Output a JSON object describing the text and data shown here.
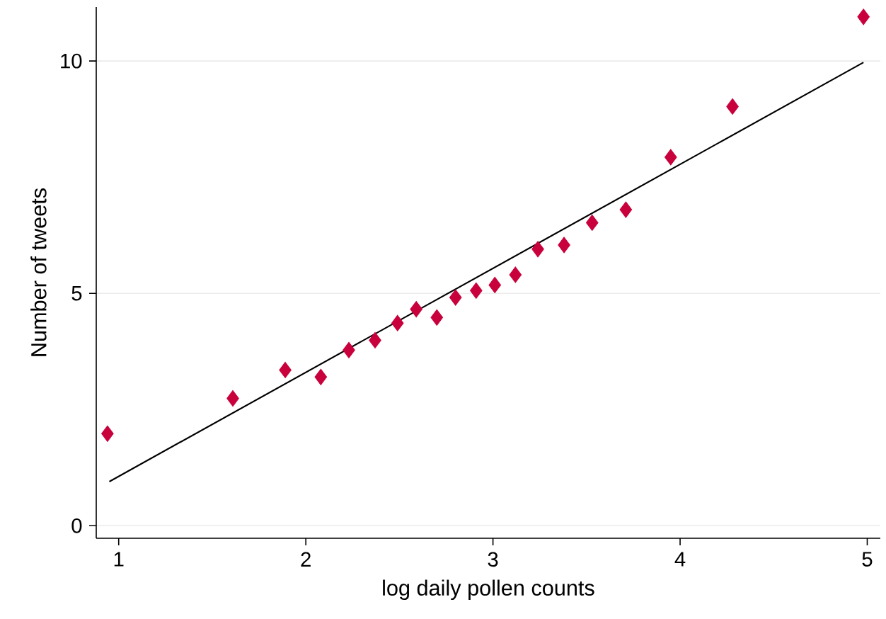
{
  "chart_data": {
    "type": "scatter",
    "xlabel": "log daily pollen counts",
    "ylabel": "Number of tweets",
    "xlim": [
      0.88,
      5.07
    ],
    "ylim": [
      -0.27,
      11.16
    ],
    "xticks": [
      1,
      2,
      3,
      4,
      5
    ],
    "yticks": [
      0,
      5,
      10
    ],
    "grid": "y",
    "line_style": "solid",
    "series": [
      {
        "marker": "diamond",
        "color": "#c8003c",
        "x": [
          0.94,
          1.61,
          1.89,
          2.08,
          2.23,
          2.37,
          2.49,
          2.59,
          2.7,
          2.8,
          2.91,
          3.01,
          3.12,
          3.24,
          3.38,
          3.53,
          3.71,
          3.95,
          4.28,
          4.98
        ],
        "values": [
          1.98,
          2.74,
          3.35,
          3.2,
          3.78,
          3.99,
          4.36,
          4.66,
          4.48,
          4.91,
          5.06,
          5.18,
          5.4,
          5.95,
          6.04,
          6.52,
          6.8,
          7.93,
          9.02,
          10.95
        ]
      },
      {
        "type": "line",
        "marker": "none",
        "color": "#000000",
        "x": [
          0.95,
          4.98
        ],
        "values": [
          0.95,
          9.97
        ]
      }
    ]
  }
}
